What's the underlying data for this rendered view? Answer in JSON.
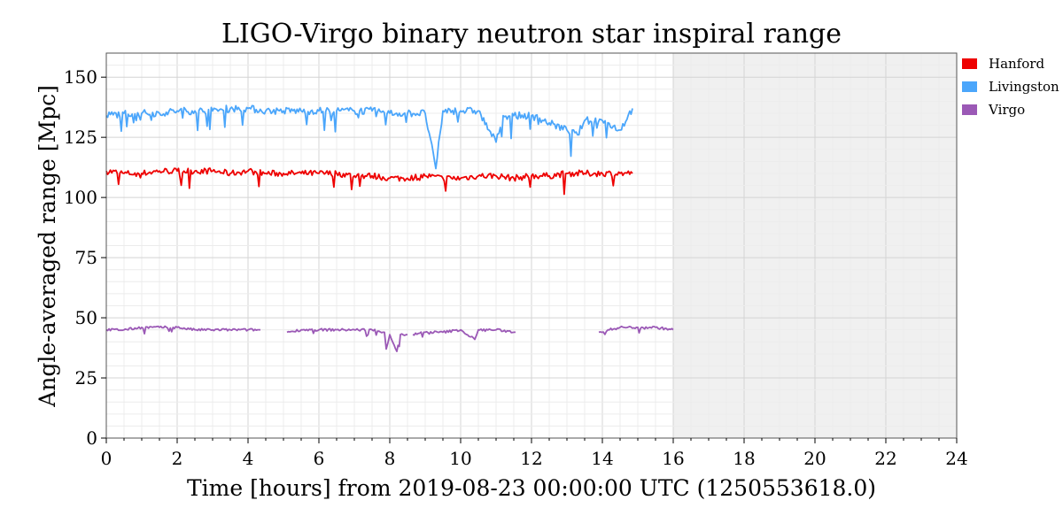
{
  "chart_data": {
    "type": "line",
    "title": "LIGO-Virgo binary neutron star inspiral range",
    "xlabel": "Time [hours] from 2019-08-23 00:00:00 UTC (1250553618.0)",
    "ylabel": "Angle-averaged range [Mpc]",
    "xlim": [
      0,
      24
    ],
    "ylim": [
      0,
      160
    ],
    "xticks": [
      0,
      2,
      4,
      6,
      8,
      10,
      12,
      14,
      16,
      18,
      20,
      22,
      24
    ],
    "yticks": [
      0,
      25,
      50,
      75,
      100,
      125,
      150
    ],
    "grid": true,
    "future_shaded_from": 16,
    "legend_position": "top-right outside",
    "series": [
      {
        "name": "Hanford",
        "color": "#ee0000",
        "segments": [
          {
            "x": [
              0,
              0.5,
              1.0,
              1.5,
              2.0,
              2.5,
              3.0,
              3.5,
              4.0,
              4.5,
              5.0,
              5.5,
              6.0,
              6.5,
              7.0,
              7.5,
              8.0,
              8.5,
              9.0,
              9.5,
              10.0,
              10.5,
              11.0,
              11.5,
              12.0,
              12.5,
              13.0,
              13.5,
              14.0,
              14.5,
              14.85
            ],
            "y": [
              111,
              110,
              110,
              111,
              111,
              111,
              111,
              110,
              111,
              110,
              110,
              110,
              110,
              110,
              109,
              109,
              108,
              108,
              109,
              108,
              108,
              109,
              109,
              108,
              109,
              109,
              110,
              110,
              110,
              110,
              110
            ]
          }
        ]
      },
      {
        "name": "Livingston",
        "color": "#4ba6fb",
        "segments": [
          {
            "x": [
              0,
              0.5,
              1.0,
              1.5,
              2.0,
              2.5,
              3.0,
              3.5,
              4.0,
              4.5,
              5.0,
              5.5,
              6.0,
              6.5,
              7.0,
              7.5,
              8.0,
              8.5,
              9.0,
              9.3,
              9.5,
              10.0,
              10.5,
              10.8,
              11.0,
              11.2,
              11.5,
              12.0,
              12.5,
              13.0,
              13.3,
              13.5,
              14.0,
              14.5,
              14.85
            ],
            "y": [
              134,
              135,
              135,
              135,
              136,
              136,
              136,
              137,
              137,
              136,
              136,
              136,
              136,
              136,
              136,
              136,
              135,
              135,
              135,
              112,
              136,
              136,
              136,
              128,
              123,
              134,
              134,
              134,
              131,
              128,
              126,
              132,
              132,
              128,
              137
            ]
          }
        ]
      },
      {
        "name": "Virgo",
        "color": "#9b59b6",
        "segments": [
          {
            "x": [
              0,
              0.5,
              1.0,
              1.5,
              2.0,
              2.5,
              3.0,
              3.5,
              4.0,
              4.35
            ],
            "y": [
              45,
              45,
              46,
              46,
              46,
              45,
              45,
              45,
              45,
              45
            ]
          },
          {
            "x": [
              5.1,
              5.5,
              6.0,
              6.5,
              7.0,
              7.5,
              7.85,
              7.9,
              8.0,
              8.2,
              8.3,
              8.5
            ],
            "y": [
              44,
              45,
              45,
              45,
              45,
              45,
              44,
              37,
              43,
              36,
              43,
              43
            ]
          },
          {
            "x": [
              8.65,
              9.0,
              9.5,
              10.0,
              10.4,
              10.5,
              11.0,
              11.55
            ],
            "y": [
              43,
              44,
              44,
              45,
              41,
              45,
              45,
              44
            ]
          },
          {
            "x": [
              13.9,
              14.2,
              14.5,
              15.0,
              15.5,
              16.0
            ],
            "y": [
              44,
              45,
              46,
              46,
              46,
              45
            ]
          }
        ]
      }
    ]
  }
}
